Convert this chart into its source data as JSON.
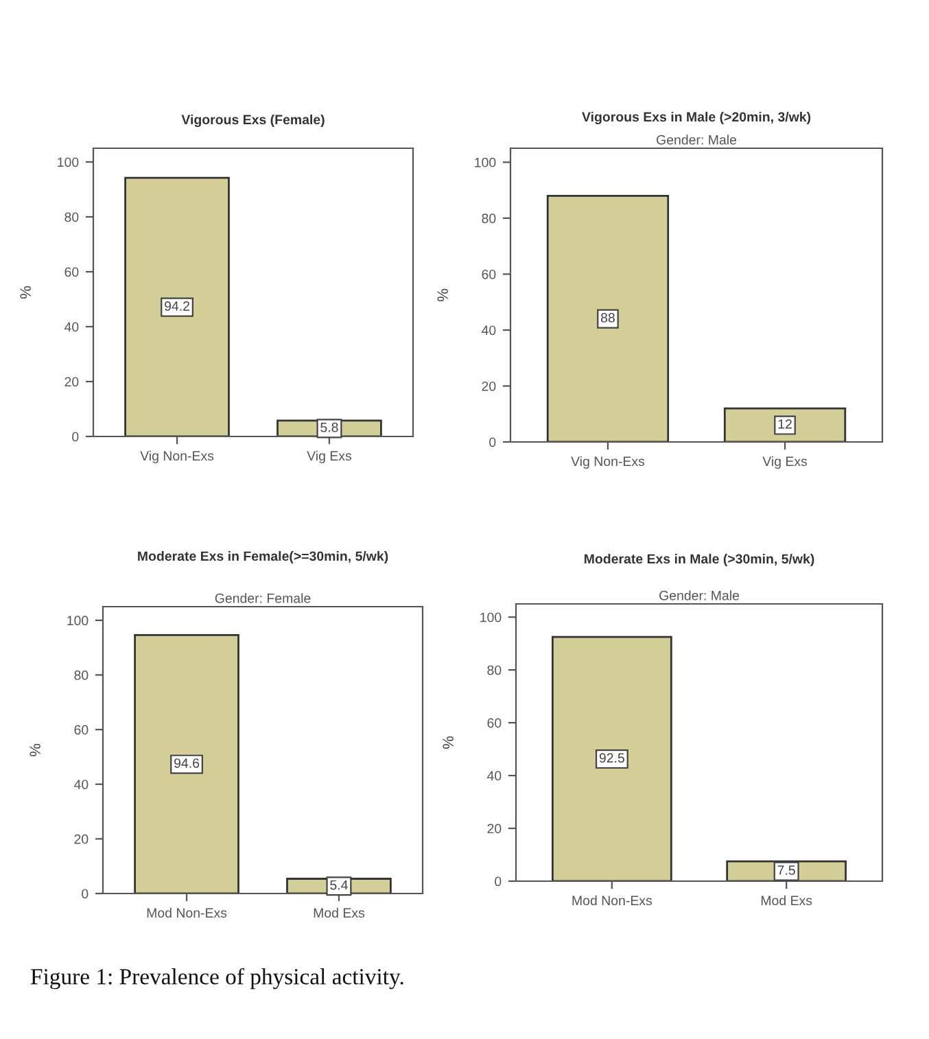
{
  "chart_data": [
    {
      "type": "bar",
      "title": "Vigorous Exs (Female)",
      "ylabel": "%",
      "categories": [
        "Vig Non-Exs",
        "Vig Exs"
      ],
      "values": [
        94.2,
        5.8
      ],
      "color": "#d4cf98",
      "ylim": [
        0,
        105
      ],
      "yticks": [
        0,
        20,
        40,
        60,
        80,
        100
      ],
      "data_labels": true,
      "grid": false,
      "legend": false
    },
    {
      "type": "bar",
      "title": "Vigorous Exs in Male (>20min, 3/wk)",
      "subtitle": "Gender: Male",
      "ylabel": "%",
      "categories": [
        "Vig Non-Exs",
        "Vig Exs"
      ],
      "values": [
        88,
        12
      ],
      "color": "#d4cf98",
      "ylim": [
        0,
        105
      ],
      "yticks": [
        0,
        20,
        40,
        60,
        80,
        100
      ],
      "data_labels": true,
      "grid": false,
      "legend": false
    },
    {
      "type": "bar",
      "title": "Moderate Exs in Female(>=30min, 5/wk)",
      "subtitle": "Gender: Female",
      "ylabel": "%",
      "categories": [
        "Mod Non-Exs",
        "Mod Exs"
      ],
      "values": [
        94.6,
        5.4
      ],
      "color": "#d4cf98",
      "ylim": [
        0,
        105
      ],
      "yticks": [
        0,
        20,
        40,
        60,
        80,
        100
      ],
      "data_labels": true,
      "grid": false,
      "legend": false
    },
    {
      "type": "bar",
      "title": "Moderate Exs in Male (>30min, 5/wk)",
      "subtitle": "Gender: Male",
      "ylabel": "%",
      "categories": [
        "Mod Non-Exs",
        "Mod Exs"
      ],
      "values": [
        92.5,
        7.5
      ],
      "color": "#d4cf98",
      "ylim": [
        0,
        105
      ],
      "yticks": [
        0,
        20,
        40,
        60,
        80,
        100
      ],
      "data_labels": true,
      "grid": false,
      "legend": false,
      "annotations": [
        "Figure 1: Prevalence of physical activity."
      ]
    }
  ]
}
